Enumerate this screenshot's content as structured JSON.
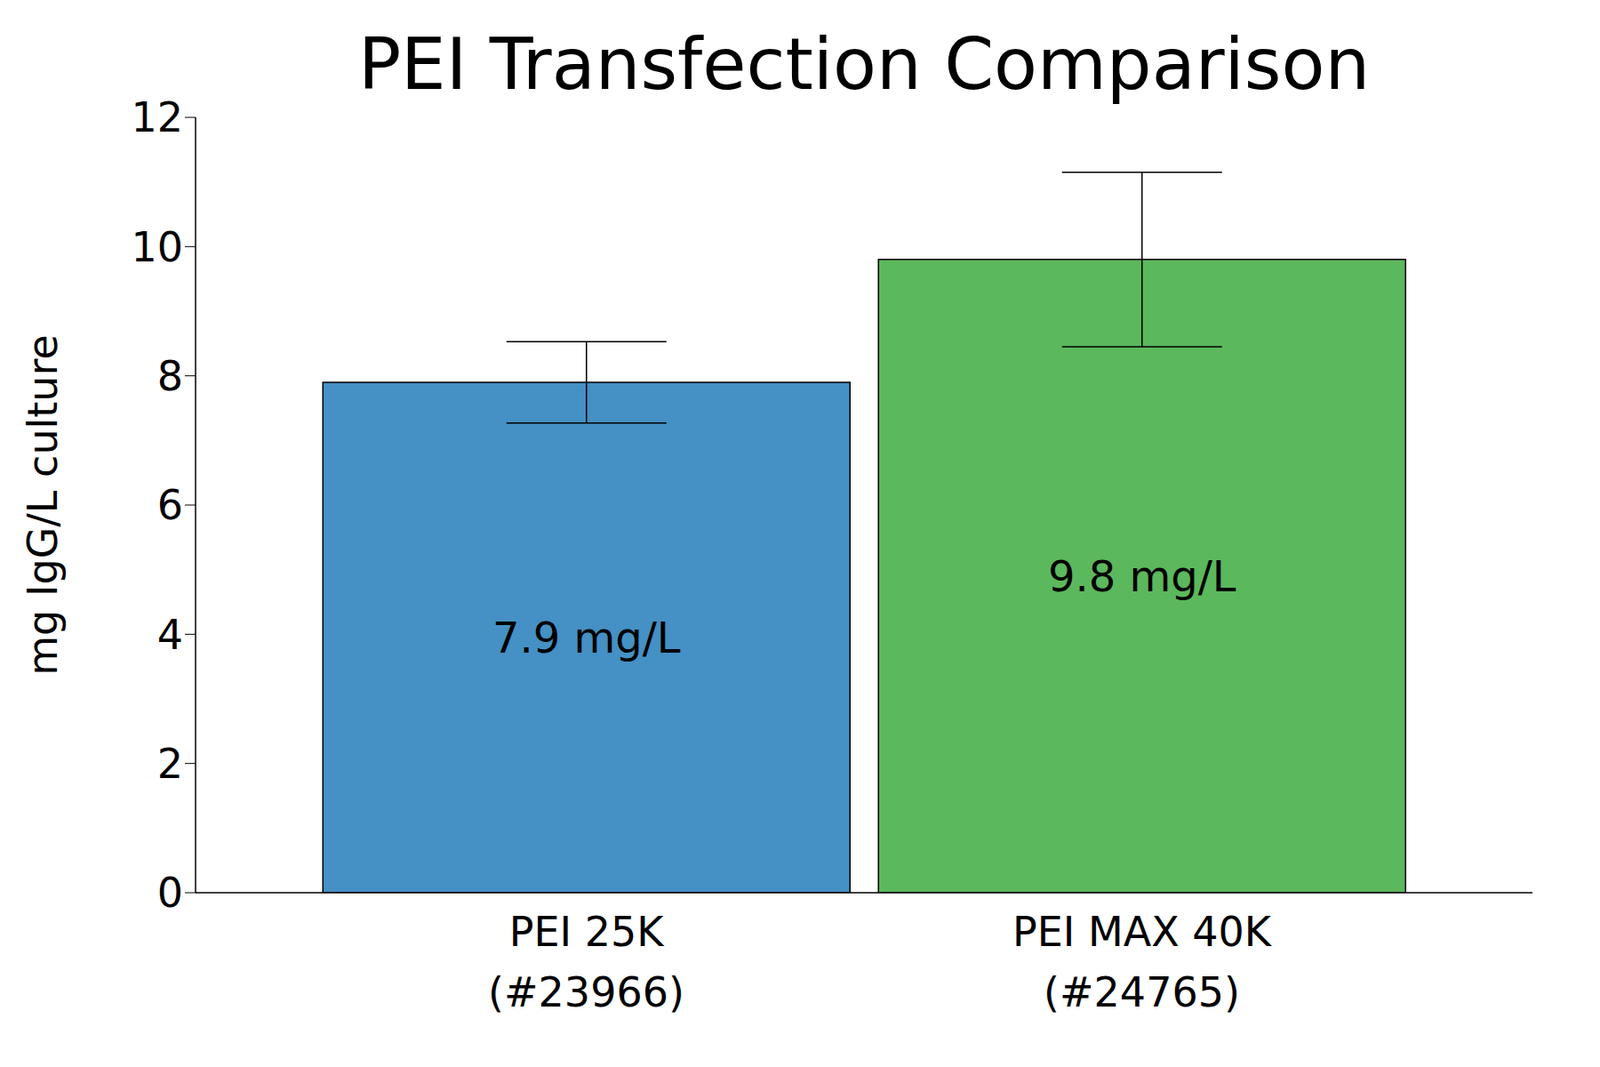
{
  "chart_data": {
    "type": "bar",
    "title": "PEI Transfection Comparison",
    "y_label": "mg IgG/L culture",
    "categories": [
      "PEI 25K\n(#23966)",
      "PEI MAX 40K\n(#24765)"
    ],
    "values": [
      7.9,
      9.8
    ],
    "value_labels": [
      "7.9 mg/L",
      "9.8 mg/L"
    ],
    "errors": [
      0.63,
      1.35
    ],
    "colors": [
      "#4590c4",
      "#5cb85c"
    ],
    "ylim": [
      0,
      12
    ],
    "yticks": [
      0,
      2,
      4,
      6,
      8,
      10,
      12
    ],
    "grid": false,
    "data_labels": true
  }
}
